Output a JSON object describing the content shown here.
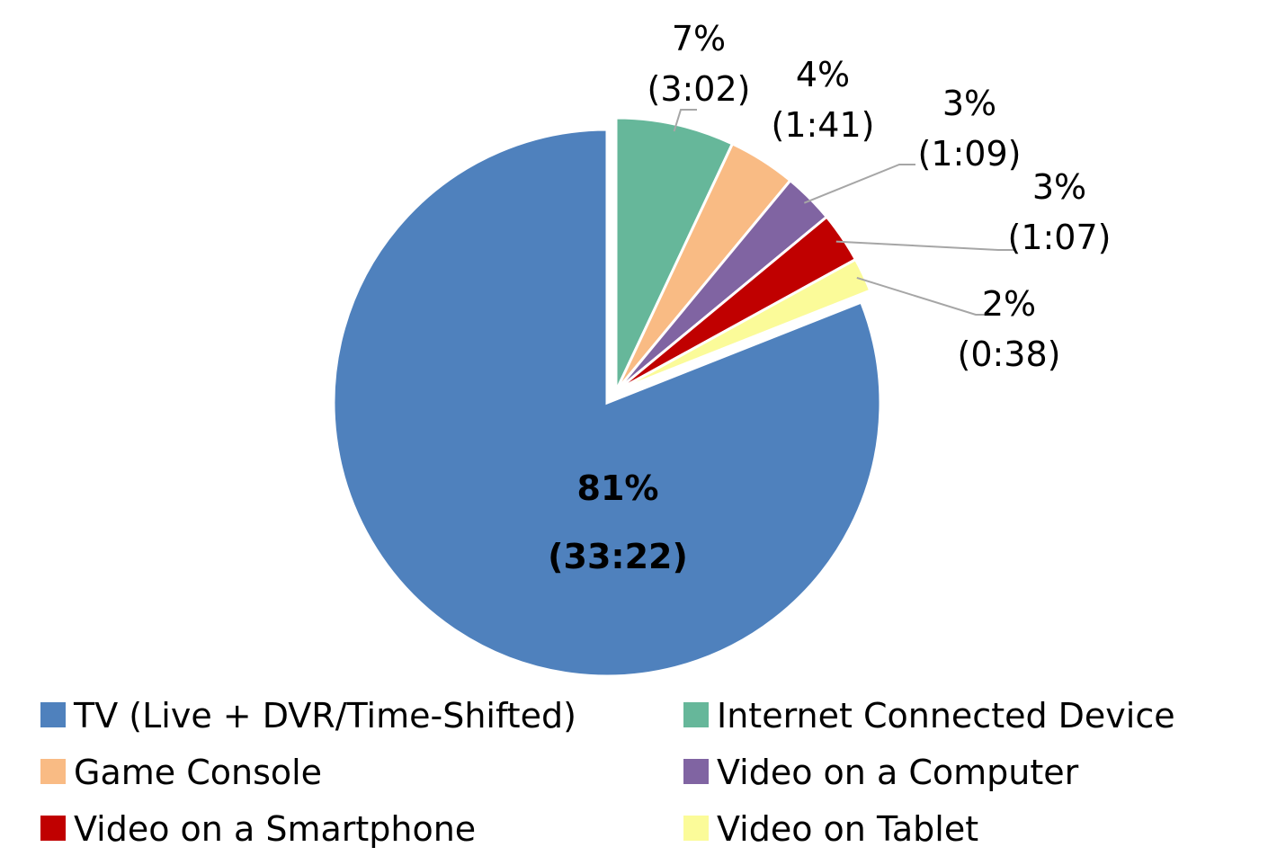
{
  "chart_data": {
    "type": "pie",
    "categories": [
      "TV (Live + DVR/Time-Shifted)",
      "Internet Connected Device",
      "Game Console",
      "Video on a Computer",
      "Video on a Smartphone",
      "Video on Tablet"
    ],
    "values": [
      81,
      7,
      4,
      3,
      3,
      2
    ],
    "value_labels": [
      "81%",
      "7%",
      "4%",
      "3%",
      "3%",
      "2%"
    ],
    "durations": [
      "(33:22)",
      "(3:02)",
      "(1:41)",
      "(1:09)",
      "(1:07)",
      "(0:38)"
    ],
    "colors": [
      "#4f81bd",
      "#66b79a",
      "#f9bb84",
      "#8064a2",
      "#c00000",
      "#fbfb99"
    ],
    "legend": "bottom"
  }
}
